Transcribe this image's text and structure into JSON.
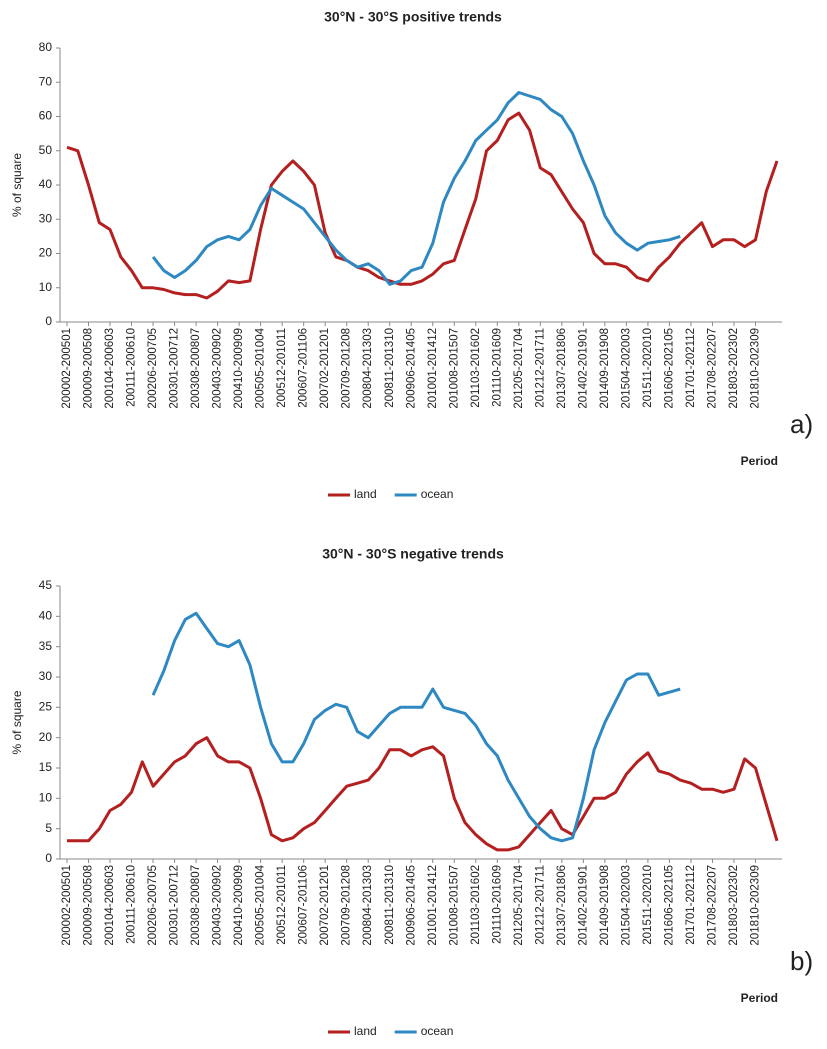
{
  "chart_data": [
    {
      "type": "line",
      "title": "30°N - 30°S positive trends",
      "ylabel": "% of square",
      "xlabel": "Period",
      "panel_label": "a)",
      "legend": "bottom",
      "categories": [
        "200002-200501",
        null,
        "200009-200508",
        null,
        "200104-200603",
        null,
        "200111-200610",
        null,
        "200206-200705",
        null,
        "200301-200712",
        null,
        "200308-200807",
        null,
        "200403-200902",
        null,
        "200410-200909",
        null,
        "200505-201004",
        null,
        "200512-201011",
        null,
        "200607-201106",
        null,
        "200702-201201",
        null,
        "200709-201208",
        null,
        "200804-201303",
        null,
        "200811-201310",
        null,
        "200906-201405",
        null,
        "201001-201412",
        null,
        "201008-201507",
        null,
        "201103-201602",
        null,
        "201110-201609",
        null,
        "201205-201704",
        null,
        "201212-201711",
        null,
        "201307-201806",
        null,
        "201402-201901",
        null,
        "201409-201908",
        null,
        "201504-202003",
        null,
        "201511-202010",
        null,
        "201606-202105",
        null,
        "201701-202112",
        null,
        "201708-202207",
        null,
        "201803-202302",
        null,
        "201810-202309",
        null,
        null
      ],
      "ylim": [
        0,
        80
      ],
      "yticks": [
        0,
        10,
        20,
        30,
        40,
        50,
        60,
        70,
        80
      ],
      "grid": false,
      "series": [
        {
          "name": "land",
          "color": "#b41f1f",
          "values": [
            51,
            50,
            40,
            29,
            27,
            19,
            15,
            10,
            10,
            9.5,
            8.5,
            8,
            8,
            7,
            9,
            12,
            11.5,
            12,
            27,
            40,
            44,
            47,
            44,
            40,
            26,
            19,
            18,
            16,
            15,
            13,
            12,
            11,
            11,
            12,
            14,
            17,
            18,
            27,
            36,
            50,
            53,
            59,
            61,
            56,
            45,
            43,
            38,
            33,
            29,
            20,
            17,
            17,
            16,
            13,
            12,
            16,
            19,
            23,
            26,
            29,
            22,
            24,
            24,
            22,
            24,
            38,
            47
          ]
        },
        {
          "name": "ocean",
          "color": "#2e88c2",
          "values": [
            null,
            null,
            null,
            null,
            null,
            null,
            null,
            null,
            19,
            15,
            13,
            15,
            18,
            22,
            24,
            25,
            24,
            27,
            34,
            39,
            37,
            35,
            33,
            29,
            25,
            21,
            18,
            16,
            17,
            15,
            11,
            12,
            15,
            16,
            23,
            35,
            42,
            47,
            53,
            56,
            59,
            64,
            67,
            66,
            65,
            62,
            60,
            55,
            47,
            40,
            31,
            26,
            23,
            21,
            23,
            23.5,
            24,
            25,
            null,
            null,
            null,
            null,
            null,
            null,
            null,
            null,
            null
          ]
        }
      ]
    },
    {
      "type": "line",
      "title": "30°N - 30°S negative trends",
      "ylabel": "% of square",
      "xlabel": "Period",
      "panel_label": "b)",
      "legend": "bottom",
      "categories": [
        "200002-200501",
        null,
        "200009-200508",
        null,
        "200104-200603",
        null,
        "200111-200610",
        null,
        "200206-200705",
        null,
        "200301-200712",
        null,
        "200308-200807",
        null,
        "200403-200902",
        null,
        "200410-200909",
        null,
        "200505-201004",
        null,
        "200512-201011",
        null,
        "200607-201106",
        null,
        "200702-201201",
        null,
        "200709-201208",
        null,
        "200804-201303",
        null,
        "200811-201310",
        null,
        "200906-201405",
        null,
        "201001-201412",
        null,
        "201008-201507",
        null,
        "201103-201602",
        null,
        "201110-201609",
        null,
        "201205-201704",
        null,
        "201212-201711",
        null,
        "201307-201806",
        null,
        "201402-201901",
        null,
        "201409-201908",
        null,
        "201504-202003",
        null,
        "201511-202010",
        null,
        "201606-202105",
        null,
        "201701-202112",
        null,
        "201708-202207",
        null,
        "201803-202302",
        null,
        "201810-202309",
        null,
        null
      ],
      "ylim": [
        0,
        45
      ],
      "yticks": [
        0,
        5,
        10,
        15,
        20,
        25,
        30,
        35,
        40,
        45
      ],
      "grid": false,
      "series": [
        {
          "name": "land",
          "color": "#b41f1f",
          "values": [
            3,
            3,
            3,
            5,
            8,
            9,
            11,
            16,
            12,
            14,
            16,
            17,
            19,
            20,
            17,
            16,
            16,
            15,
            10,
            4,
            3,
            3.5,
            5,
            6,
            8,
            10,
            12,
            12.5,
            13,
            15,
            18,
            18,
            17,
            18,
            18.5,
            17,
            10,
            6,
            4,
            2.5,
            1.5,
            1.5,
            2,
            4,
            6,
            8,
            5,
            4,
            7,
            10,
            10,
            11,
            14,
            16,
            17.5,
            14.5,
            14,
            13,
            12.5,
            11.5,
            11.5,
            11,
            11.5,
            16.5,
            15,
            9,
            3
          ]
        },
        {
          "name": "ocean",
          "color": "#2e88c2",
          "values": [
            null,
            null,
            null,
            null,
            null,
            null,
            null,
            null,
            27,
            31,
            36,
            39.5,
            40.5,
            38,
            35.5,
            35,
            36,
            32,
            25,
            19,
            16,
            16,
            19,
            23,
            24.5,
            25.5,
            25,
            21,
            20,
            22,
            24,
            25,
            25,
            25,
            28,
            25,
            24.5,
            24,
            22,
            19,
            17,
            13,
            10,
            7,
            5,
            3.5,
            3,
            3.5,
            10,
            18,
            22.5,
            26,
            29.5,
            30.5,
            30.5,
            27,
            27.5,
            28,
            null,
            null,
            null,
            null,
            null,
            null,
            null,
            null,
            null
          ]
        }
      ]
    }
  ]
}
